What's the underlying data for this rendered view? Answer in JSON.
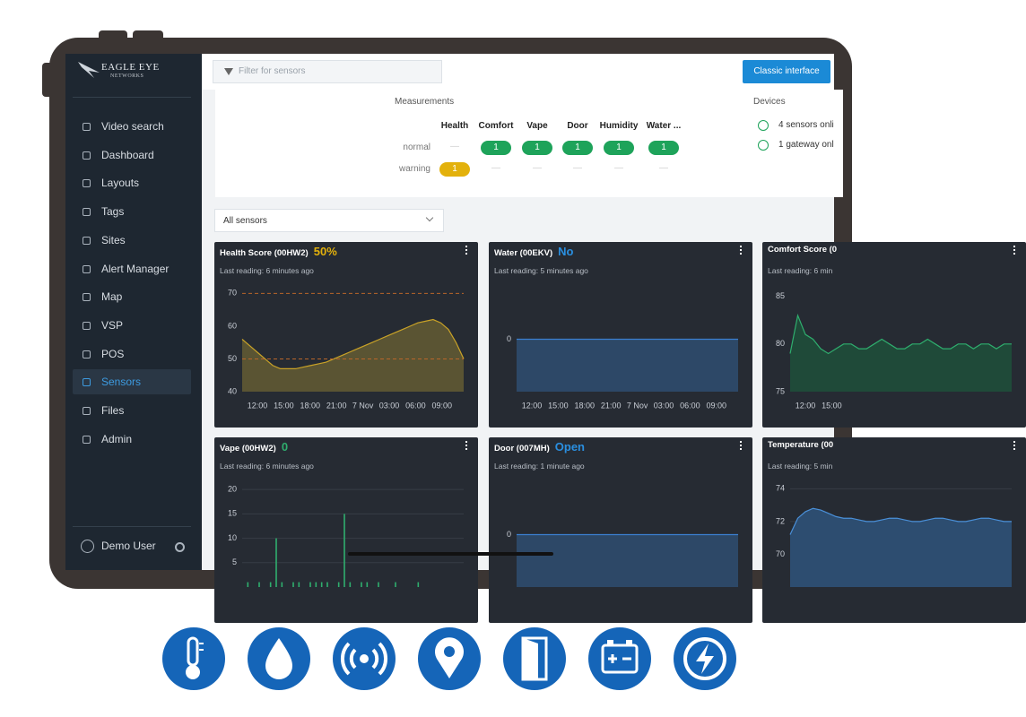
{
  "sidebar": {
    "logo_title": "EAGLE EYE",
    "logo_subtitle": "NETWORKS",
    "nav": [
      "Video search",
      "Dashboard",
      "Layouts",
      "Tags",
      "Sites",
      "Alert Manager",
      "Map",
      "VSP",
      "POS",
      "Sensors",
      "Files",
      "Admin"
    ],
    "active_index": 9,
    "user": "Demo User"
  },
  "topbar": {
    "filter_placeholder": "Filter for sensors",
    "button": "Classic interface"
  },
  "measurements": {
    "title": "Measurements",
    "columns": [
      "Health",
      "Comfort",
      "Vape",
      "Door",
      "Humidity",
      "Water ..."
    ],
    "rows": [
      {
        "label": "normal",
        "color": "#1ea35a",
        "cells": [
          "—",
          1,
          1,
          1,
          1,
          1
        ]
      },
      {
        "label": "warning",
        "color": "#e3b10c",
        "cells": [
          1,
          "—",
          "—",
          "—",
          "—",
          "—"
        ]
      }
    ]
  },
  "devices": {
    "title": "Devices",
    "items": [
      "4 sensors onli",
      "1 gateway onl"
    ]
  },
  "sensor_filter": "All sensors",
  "panels": [
    {
      "title": "Health Score (00HW2)",
      "status": "50%",
      "status_color": "#e3b10c",
      "last_reading": "Last reading: 6 minutes ago",
      "chart": {
        "type": "area",
        "color": "#c9a227",
        "fill": "#5a5433",
        "ylim": [
          40,
          72
        ],
        "yticks": [
          40,
          50,
          60,
          70
        ],
        "thresholds": [
          70,
          50
        ],
        "grid": false,
        "xtick_labels": [
          "12:00",
          "15:00",
          "18:00",
          "21:00",
          "7 Nov",
          "03:00",
          "06:00",
          "09:00"
        ],
        "values": [
          56,
          54,
          52,
          50,
          48,
          47,
          47,
          47,
          47.5,
          48,
          48.5,
          49,
          50,
          51,
          52,
          53,
          54,
          55,
          56,
          57,
          58,
          59,
          60,
          61,
          61.5,
          62,
          61,
          59,
          55,
          50
        ]
      }
    },
    {
      "title": "Water (00EKV)",
      "status": "No",
      "status_color": "#2a8fe0",
      "last_reading": "Last reading: 5 minutes ago",
      "chart": {
        "type": "area",
        "color": "#3b7fd0",
        "fill": "#2d4867",
        "ylim": [
          -1,
          1
        ],
        "yticks": [
          0
        ],
        "grid": false,
        "xtick_labels": [
          "12:00",
          "15:00",
          "18:00",
          "21:00",
          "7 Nov",
          "03:00",
          "06:00",
          "09:00"
        ],
        "values": [
          0,
          0,
          0,
          0,
          0,
          0,
          0,
          0,
          0,
          0
        ]
      }
    },
    {
      "title": "Comfort Score (0",
      "status": "",
      "status_color": "#ffffff",
      "last_reading": "Last reading: 6 min",
      "chart": {
        "type": "area",
        "color": "#2fae6e",
        "fill": "#1f4a39",
        "ylim": [
          75,
          86
        ],
        "yticks": [
          75,
          80,
          85
        ],
        "grid": false,
        "xtick_labels": [
          "12:00",
          "15:00"
        ],
        "values": [
          79,
          83,
          81,
          80.5,
          79.5,
          79,
          79.5,
          80,
          80,
          79.5,
          79.5,
          80,
          80.5,
          80,
          79.5,
          79.5,
          80,
          80,
          80.5,
          80,
          79.5,
          79.5,
          80,
          80,
          79.5,
          80,
          80,
          79.5,
          80,
          80
        ]
      }
    },
    {
      "title": "Vape (00HW2)",
      "status": "0",
      "status_color": "#2fae6e",
      "last_reading": "Last reading: 6 minutes ago",
      "chart": {
        "type": "bar",
        "color": "#2fae6e",
        "ylim": [
          0,
          21.5
        ],
        "yticks": [
          5,
          10,
          15,
          20
        ],
        "grid": true,
        "xtick_labels": [],
        "values": [
          0,
          1,
          0,
          1,
          0,
          1,
          10,
          1,
          0,
          1,
          1,
          0,
          1,
          1,
          1,
          1,
          0,
          1,
          15,
          1,
          0,
          1,
          1,
          0,
          1,
          0,
          0,
          1,
          0,
          0,
          0,
          1,
          0,
          0,
          0,
          0,
          0,
          0,
          0,
          0
        ]
      }
    },
    {
      "title": "Door (007MH)",
      "status": "Open",
      "status_color": "#2a8fe0",
      "last_reading": "Last reading: 1 minute ago",
      "chart": {
        "type": "area",
        "color": "#3b7fd0",
        "fill": "#2d4867",
        "ylim": [
          -1,
          1
        ],
        "yticks": [
          0
        ],
        "grid": false,
        "xtick_labels": [],
        "values": [
          0,
          0,
          0,
          0,
          0,
          0,
          0,
          0,
          0,
          0
        ]
      }
    },
    {
      "title": "Temperature (00",
      "status": "",
      "status_color": "#ffffff",
      "last_reading": "Last reading: 5 min",
      "chart": {
        "type": "area",
        "color": "#4a90d9",
        "fill": "#2d4d70",
        "ylim": [
          68,
          74.4
        ],
        "yticks": [
          70,
          72,
          74
        ],
        "grid": true,
        "xtick_labels": [],
        "values": [
          71.2,
          72.2,
          72.6,
          72.8,
          72.7,
          72.5,
          72.3,
          72.2,
          72.2,
          72.1,
          72,
          72,
          72.1,
          72.2,
          72.2,
          72.1,
          72,
          72,
          72.1,
          72.2,
          72.2,
          72.1,
          72,
          72,
          72.1,
          72.2,
          72.2,
          72.1,
          72,
          72
        ]
      }
    }
  ]
}
